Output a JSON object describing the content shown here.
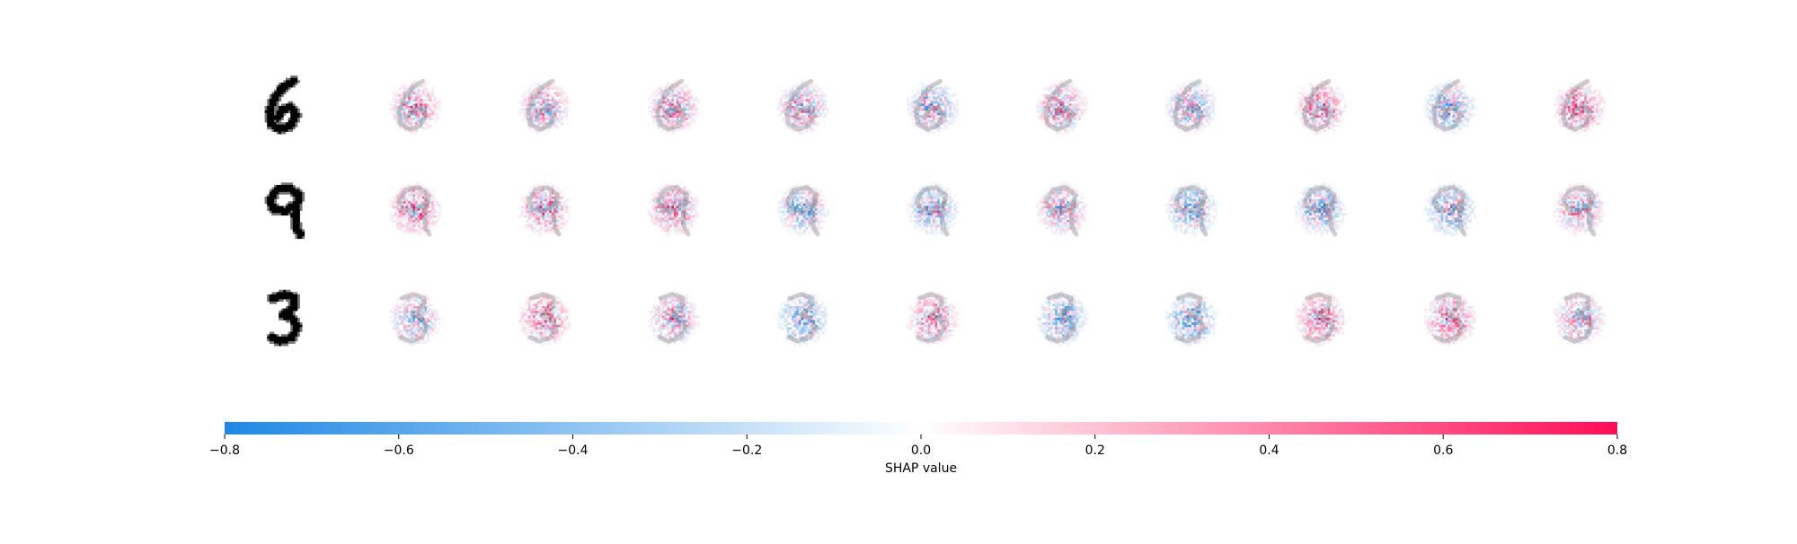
{
  "chart_data": {
    "type": "heatmap",
    "title": "",
    "rows": [
      {
        "input_digit": "6",
        "outputs": 10
      },
      {
        "input_digit": "9",
        "outputs": 10
      },
      {
        "input_digit": "3",
        "outputs": 10
      }
    ],
    "colorbar": {
      "label": "SHAP value",
      "range": [
        -0.8,
        0.8
      ],
      "ticks": [
        "−0.8",
        "−0.6",
        "−0.4",
        "−0.2",
        "0.0",
        "0.2",
        "0.4",
        "0.6",
        "0.8"
      ],
      "tick_values": [
        -0.8,
        -0.6,
        -0.4,
        -0.2,
        0.0,
        0.2,
        0.4,
        0.6,
        0.8
      ],
      "colors": {
        "negative": "#1e88e5",
        "zero": "#ffffff",
        "positive": "#ff0d57"
      }
    }
  }
}
